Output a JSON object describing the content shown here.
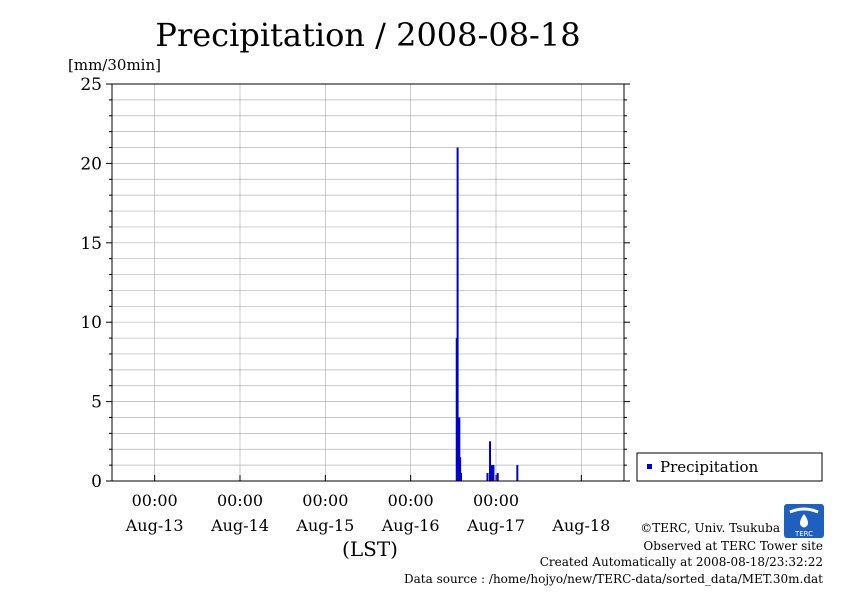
{
  "chart_data": {
    "type": "bar",
    "title": "Precipitation / 2008-08-18",
    "ylabel": "[mm/30min]",
    "xlabel": "(LST)",
    "ylim": [
      0,
      25
    ],
    "yticks": [
      "0",
      "5",
      "10",
      "15",
      "20",
      "25"
    ],
    "x_time_labels": [
      "00:00",
      "00:00",
      "00:00",
      "00:00",
      "00:00"
    ],
    "x_date_labels": [
      "Aug-13",
      "Aug-14",
      "Aug-15",
      "Aug-16",
      "Aug-17",
      "Aug-18"
    ],
    "x_start_day": 12.5,
    "x_end_day": 18.5,
    "grid": true,
    "legend": {
      "position": "right",
      "label": "Precipitation"
    },
    "series": [
      {
        "name": "Precipitation",
        "color": "#0000cc",
        "points": [
          {
            "day": 16.54,
            "value": 9.0
          },
          {
            "day": 16.55,
            "value": 21.0
          },
          {
            "day": 16.56,
            "value": 2.0
          },
          {
            "day": 16.57,
            "value": 4.0
          },
          {
            "day": 16.58,
            "value": 1.5
          },
          {
            "day": 16.59,
            "value": 0.5
          },
          {
            "day": 16.9,
            "value": 0.5
          },
          {
            "day": 16.93,
            "value": 2.5
          },
          {
            "day": 16.95,
            "value": 1.0
          },
          {
            "day": 16.97,
            "value": 1.0
          },
          {
            "day": 17.02,
            "value": 0.5
          },
          {
            "day": 17.25,
            "value": 1.0
          }
        ]
      }
    ]
  },
  "footer": {
    "copyright": "©TERC, Univ. Tsukuba",
    "observed": "Observed at TERC Tower site",
    "created": "Created Automatically at 2008-08-18/23:32:22",
    "source": "Data source : /home/hojyo/new/TERC-data/sorted_data/MET.30m.dat"
  },
  "logo": {
    "text": "TERC",
    "color": "#1f5fbf"
  }
}
